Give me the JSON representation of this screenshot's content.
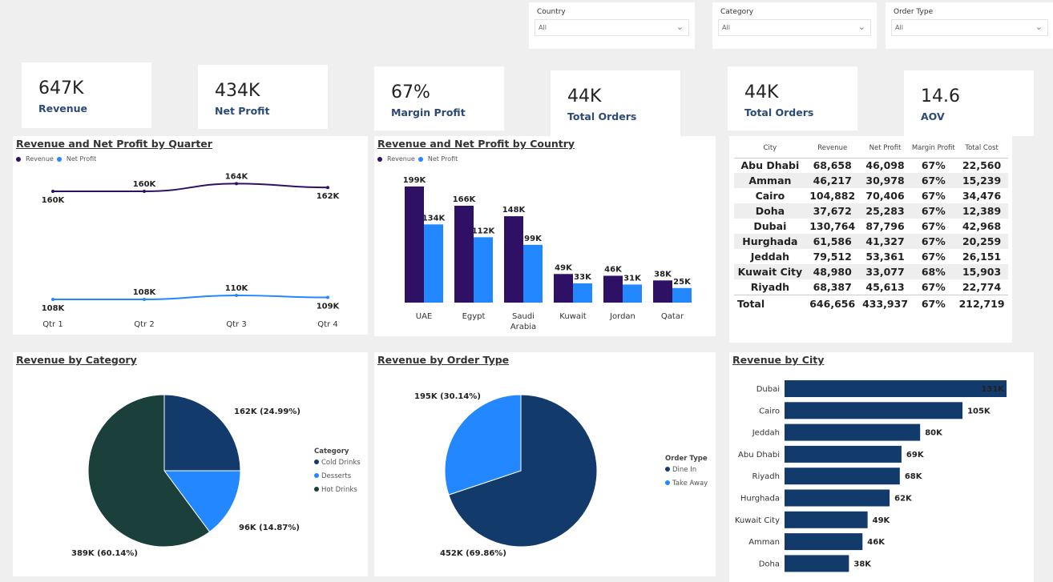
{
  "slicers": [
    {
      "label": "Country",
      "value": "All"
    },
    {
      "label": "Category",
      "value": "All"
    },
    {
      "label": "Order Type",
      "value": "All"
    }
  ],
  "kpis": [
    {
      "value": "647K",
      "label": "Revenue"
    },
    {
      "value": "434K",
      "label": "Net Profit"
    },
    {
      "value": "67%",
      "label": "Margin Profit"
    },
    {
      "value": "44K",
      "label": "Total Orders"
    },
    {
      "value": "44K",
      "label": "Total Orders"
    },
    {
      "value": "14.6",
      "label": "AOV"
    }
  ],
  "colors": {
    "revenue": "#2e1065",
    "net_profit": "#2388ff",
    "city_bar": "#123a6b",
    "cold_drinks": "#123a6b",
    "desserts": "#2388ff",
    "hot_drinks": "#1b3f3b",
    "dine_in": "#123a6b",
    "take_away": "#2388ff"
  },
  "table": {
    "columns": [
      "City",
      "Revenue",
      "Net Profit",
      "Margin Profit",
      "Total Cost"
    ],
    "rows": [
      [
        "Abu Dhabi",
        "68,658",
        "46,098",
        "67%",
        "22,560"
      ],
      [
        "Amman",
        "46,217",
        "30,978",
        "67%",
        "15,239"
      ],
      [
        "Cairo",
        "104,882",
        "70,406",
        "67%",
        "34,476"
      ],
      [
        "Doha",
        "37,672",
        "25,283",
        "67%",
        "12,389"
      ],
      [
        "Dubai",
        "130,764",
        "87,796",
        "67%",
        "42,968"
      ],
      [
        "Hurghada",
        "61,586",
        "41,327",
        "67%",
        "20,259"
      ],
      [
        "Jeddah",
        "79,512",
        "53,361",
        "67%",
        "26,151"
      ],
      [
        "Kuwait City",
        "48,980",
        "33,077",
        "68%",
        "15,903"
      ],
      [
        "Riyadh",
        "68,387",
        "45,613",
        "67%",
        "22,774"
      ]
    ],
    "total": [
      "Total",
      "646,656",
      "433,937",
      "67%",
      "212,719"
    ]
  },
  "chart_data": [
    {
      "type": "line",
      "title": "Revenue and Net Profit by Quarter",
      "categories": [
        "Qtr 1",
        "Qtr 2",
        "Qtr 3",
        "Qtr 4"
      ],
      "series": [
        {
          "name": "Revenue",
          "values": [
            160,
            160,
            164,
            162
          ],
          "labels": [
            "160K",
            "160K",
            "164K",
            "162K"
          ]
        },
        {
          "name": "Net Profit",
          "values": [
            108,
            108,
            110,
            109
          ],
          "labels": [
            "108K",
            "108K",
            "110K",
            "109K"
          ]
        }
      ]
    },
    {
      "type": "bar",
      "title": "Revenue and Net Profit by Country",
      "categories": [
        "UAE",
        "Egypt",
        "Saudi Arabia",
        "Kuwait",
        "Jordan",
        "Qatar"
      ],
      "series": [
        {
          "name": "Revenue",
          "values": [
            199,
            166,
            148,
            49,
            46,
            38
          ],
          "labels": [
            "199K",
            "166K",
            "148K",
            "49K",
            "46K",
            "38K"
          ]
        },
        {
          "name": "Net Profit",
          "values": [
            134,
            112,
            99,
            33,
            31,
            25
          ],
          "labels": [
            "134K",
            "112K",
            "99K",
            "33K",
            "31K",
            "25K"
          ]
        }
      ]
    },
    {
      "type": "pie",
      "title": "Revenue by Category",
      "legend_title": "Category",
      "slices": [
        {
          "name": "Cold  Drinks",
          "value": 162,
          "pct": 24.99,
          "label": "162K (24.99%)"
        },
        {
          "name": "Desserts",
          "value": 96,
          "pct": 14.87,
          "label": "96K (14.87%)"
        },
        {
          "name": "Hot  Drinks",
          "value": 389,
          "pct": 60.14,
          "label": "389K (60.14%)"
        }
      ]
    },
    {
      "type": "pie",
      "title": "Revenue by Order Type",
      "legend_title": "Order Type",
      "slices": [
        {
          "name": "Dine In",
          "value": 452,
          "pct": 69.86,
          "label": "452K (69.86%)"
        },
        {
          "name": "Take Away",
          "value": 195,
          "pct": 30.14,
          "label": "195K (30.14%)"
        }
      ]
    },
    {
      "type": "bar",
      "orientation": "horizontal",
      "title": "Revenue by City",
      "categories": [
        "Dubai",
        "Cairo",
        "Jeddah",
        "Abu Dhabi",
        "Riyadh",
        "Hurghada",
        "Kuwait City",
        "Amman",
        "Doha"
      ],
      "values": [
        131,
        105,
        80,
        69,
        68,
        62,
        49,
        46,
        38
      ],
      "labels": [
        "131K",
        "105K",
        "80K",
        "69K",
        "68K",
        "62K",
        "49K",
        "46K",
        "38K"
      ]
    }
  ]
}
